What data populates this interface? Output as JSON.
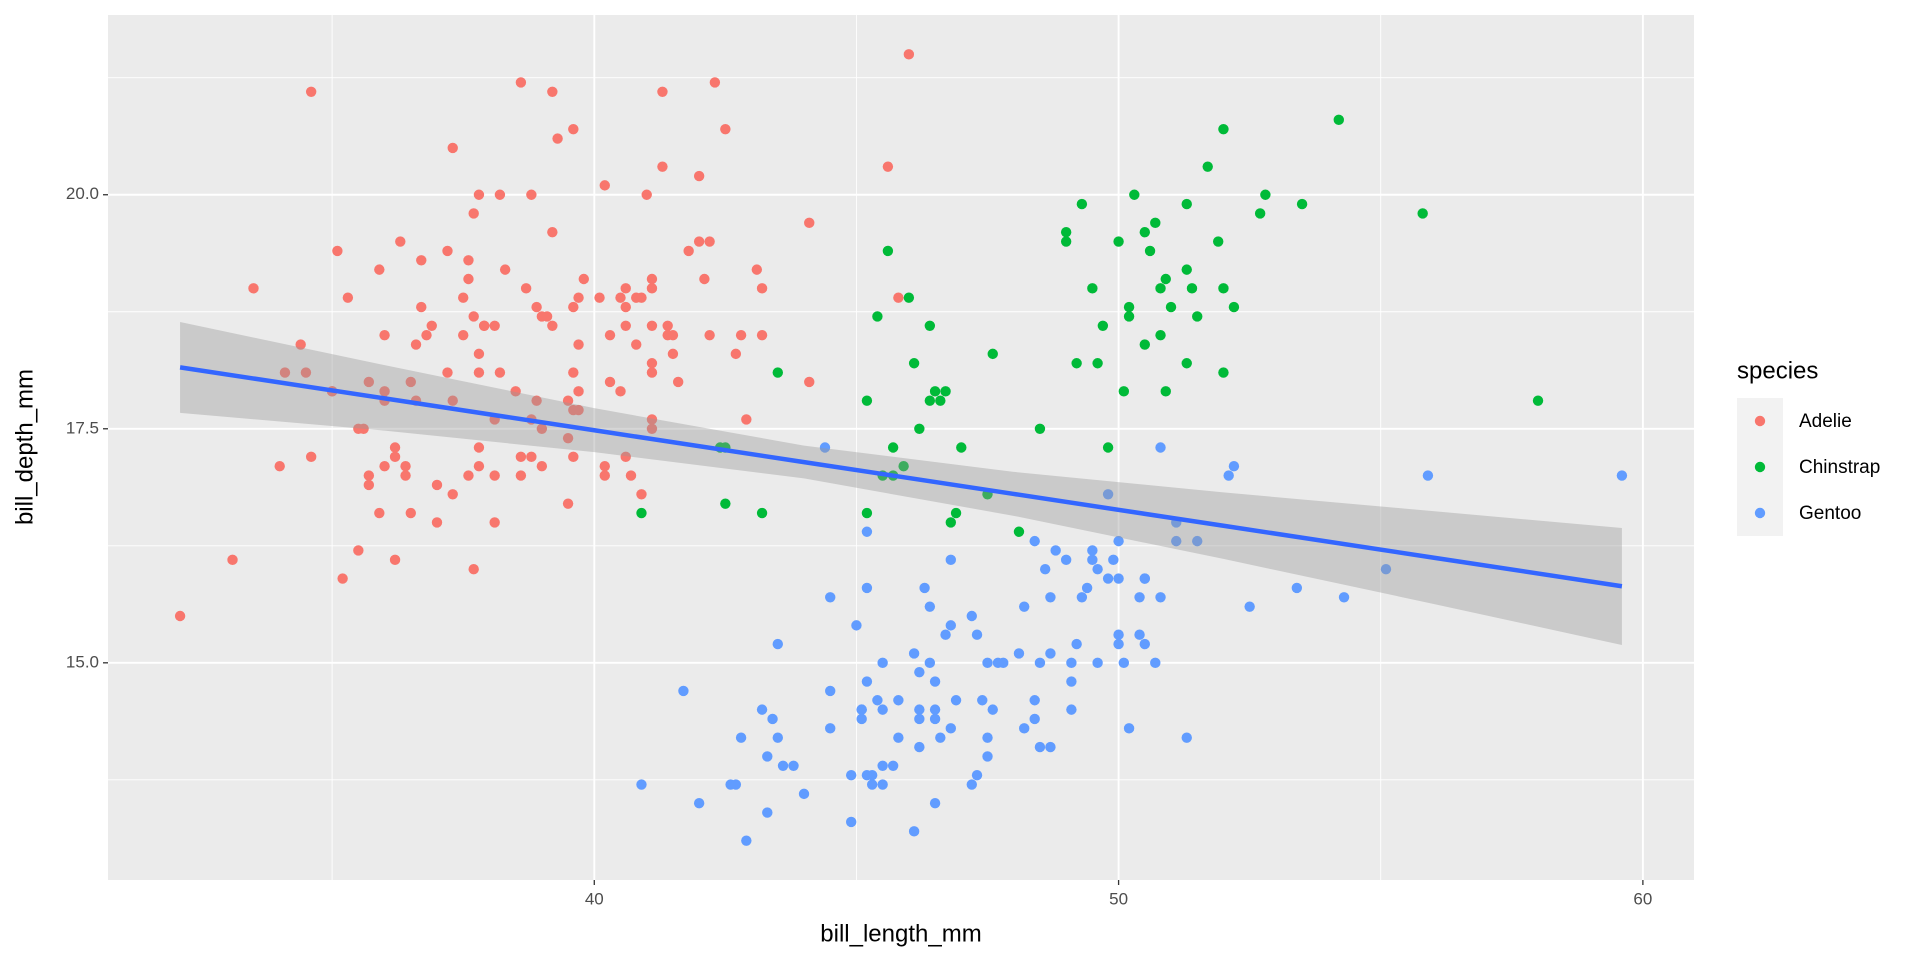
{
  "chart_data": {
    "type": "scatter",
    "x_label": "bill_length_mm",
    "y_label": "bill_depth_mm",
    "legend_title": "species",
    "legend_position": "right",
    "grid": true,
    "xlim": [
      30.725,
      60.975
    ],
    "ylim": [
      12.68,
      21.92
    ],
    "xticks": [
      40,
      50,
      60
    ],
    "yticks": [
      {
        "value": 15,
        "label": "15.0"
      },
      {
        "value": 17.5,
        "label": "17.5"
      },
      {
        "value": 20,
        "label": "20.0"
      }
    ],
    "series": [
      {
        "name": "Adelie",
        "color": "#F8766D",
        "x": [
          39.1,
          39.5,
          40.3,
          36.7,
          39.3,
          38.9,
          39.2,
          34.1,
          42.0,
          37.8,
          37.8,
          41.1,
          38.6,
          34.6,
          36.6,
          38.7,
          42.5,
          34.4,
          46.0,
          37.8,
          37.7,
          35.9,
          38.2,
          38.8,
          35.3,
          40.6,
          40.5,
          37.9,
          40.5,
          39.5,
          37.2,
          39.5,
          40.9,
          36.4,
          39.2,
          38.8,
          42.2,
          37.6,
          39.8,
          36.5,
          40.8,
          36.0,
          44.1,
          37.0,
          39.6,
          41.1,
          37.5,
          36.0,
          42.3,
          39.6,
          40.1,
          35.0,
          42.0,
          34.5,
          41.4,
          39.0,
          40.6,
          36.5,
          37.6,
          35.7,
          41.3,
          37.6,
          41.1,
          36.4,
          41.6,
          35.5,
          41.1,
          35.9,
          41.8,
          33.5,
          39.7,
          39.6,
          45.8,
          35.5,
          42.8,
          40.9,
          37.2,
          36.2,
          42.1,
          34.6,
          42.9,
          36.7,
          35.1,
          37.3,
          41.3,
          36.3,
          36.9,
          38.3,
          38.9,
          35.7,
          41.1,
          34.0,
          39.6,
          36.2,
          40.8,
          38.1,
          40.3,
          33.1,
          43.2,
          35.0,
          41.0,
          37.7,
          37.8,
          37.9,
          39.7,
          38.6,
          38.2,
          38.1,
          43.2,
          38.1,
          45.6,
          39.7,
          42.2,
          39.6,
          42.7,
          38.6,
          37.3,
          35.7,
          41.1,
          36.2,
          37.7,
          40.2,
          41.4,
          35.2,
          40.6,
          38.8,
          41.5,
          39.0,
          44.1,
          38.5,
          43.1,
          36.8,
          37.5,
          38.1,
          41.1,
          35.6,
          40.2,
          37.0,
          39.7,
          40.2,
          40.6,
          32.1,
          40.7,
          37.3,
          39.0,
          39.2,
          36.6,
          36.0,
          37.8,
          36.0,
          41.5
        ],
        "y": [
          18.7,
          17.4,
          18.0,
          19.3,
          20.6,
          17.8,
          19.6,
          18.1,
          20.2,
          17.1,
          17.3,
          17.6,
          21.2,
          21.1,
          17.8,
          19.0,
          20.7,
          18.4,
          21.5,
          18.3,
          18.7,
          19.2,
          18.1,
          17.2,
          18.9,
          18.6,
          17.9,
          18.6,
          18.9,
          16.7,
          18.1,
          17.8,
          18.9,
          17.0,
          21.1,
          20.0,
          18.5,
          19.3,
          19.1,
          18.0,
          18.4,
          18.5,
          19.7,
          16.9,
          18.8,
          19.0,
          18.9,
          17.9,
          21.2,
          17.7,
          18.9,
          17.9,
          19.5,
          18.1,
          18.6,
          17.5,
          18.8,
          16.6,
          19.1,
          16.9,
          21.1,
          17.0,
          18.2,
          17.1,
          18.0,
          16.2,
          19.1,
          16.6,
          19.4,
          19.0,
          18.4,
          17.2,
          18.9,
          17.5,
          18.5,
          16.8,
          19.4,
          16.1,
          19.1,
          17.2,
          17.6,
          18.8,
          19.4,
          17.8,
          20.3,
          19.5,
          18.6,
          19.2,
          18.8,
          18.0,
          18.1,
          17.1,
          18.1,
          17.3,
          18.9,
          18.6,
          18.5,
          16.1,
          18.5,
          17.9,
          20.0,
          16.0,
          20.0,
          18.6,
          18.9,
          17.2,
          20.0,
          17.0,
          19.0,
          16.5,
          20.3,
          17.7,
          19.5,
          20.7,
          18.3,
          17.0,
          20.5,
          17.0,
          18.6,
          17.2,
          19.8,
          17.0,
          18.5,
          15.9,
          19.0,
          17.6,
          18.3,
          17.1,
          18.0,
          17.9,
          19.2,
          18.5,
          18.5,
          17.6,
          17.5,
          17.5,
          20.1,
          16.5,
          17.9,
          17.1,
          17.2,
          15.5,
          17.0,
          16.8,
          18.7,
          18.6,
          18.4,
          17.8,
          18.1,
          17.1,
          18.5
        ]
      },
      {
        "name": "Chinstrap",
        "color": "#00BA38",
        "x": [
          46.5,
          50.0,
          51.3,
          45.4,
          52.7,
          45.2,
          46.1,
          51.3,
          46.0,
          51.3,
          46.6,
          51.7,
          47.0,
          52.0,
          45.9,
          50.5,
          50.3,
          58.0,
          46.4,
          49.2,
          42.4,
          48.5,
          43.2,
          50.6,
          46.7,
          52.0,
          50.5,
          49.5,
          46.4,
          52.8,
          40.9,
          54.2,
          42.5,
          51.0,
          49.7,
          47.5,
          47.6,
          52.0,
          46.9,
          53.5,
          49.0,
          46.2,
          50.9,
          45.5,
          50.9,
          50.8,
          50.1,
          49.0,
          51.5,
          49.8,
          48.1,
          51.4,
          45.7,
          50.7,
          42.5,
          52.2,
          45.2,
          49.3,
          50.2,
          45.6,
          51.9,
          46.8,
          45.7,
          55.8,
          43.5,
          49.6,
          50.8,
          50.2
        ],
        "y": [
          17.9,
          19.5,
          19.2,
          18.7,
          19.8,
          17.8,
          18.2,
          18.2,
          18.9,
          19.9,
          17.8,
          20.3,
          17.3,
          18.1,
          17.1,
          19.6,
          20.0,
          17.8,
          18.6,
          18.2,
          17.3,
          17.5,
          16.6,
          19.4,
          17.9,
          19.0,
          18.4,
          19.0,
          17.8,
          20.0,
          16.6,
          20.8,
          16.7,
          18.8,
          18.6,
          16.8,
          18.3,
          20.7,
          16.6,
          19.9,
          19.5,
          17.5,
          19.1,
          17.0,
          17.9,
          18.5,
          17.9,
          19.6,
          18.7,
          17.3,
          16.4,
          19.0,
          17.3,
          19.7,
          17.3,
          18.8,
          16.6,
          19.9,
          18.8,
          19.4,
          19.5,
          16.5,
          17.0,
          19.8,
          18.1,
          18.2,
          19.0,
          18.7
        ]
      },
      {
        "name": "Gentoo",
        "color": "#619CFF",
        "x": [
          46.1,
          50.0,
          48.7,
          50.0,
          47.6,
          46.5,
          45.4,
          46.7,
          43.3,
          46.8,
          40.9,
          49.0,
          45.5,
          48.4,
          45.8,
          49.3,
          42.0,
          49.2,
          46.2,
          48.7,
          50.2,
          45.1,
          46.5,
          46.3,
          42.9,
          46.1,
          44.5,
          47.8,
          48.2,
          50.0,
          47.3,
          42.8,
          45.1,
          59.6,
          49.1,
          48.4,
          42.6,
          44.4,
          44.0,
          48.7,
          42.7,
          49.6,
          45.3,
          49.6,
          50.5,
          43.6,
          45.5,
          50.5,
          44.9,
          45.2,
          46.6,
          48.5,
          45.1,
          50.1,
          46.5,
          45.0,
          43.8,
          45.5,
          43.2,
          50.4,
          45.3,
          46.2,
          45.7,
          54.3,
          45.8,
          49.8,
          46.2,
          49.5,
          43.5,
          50.7,
          47.7,
          46.4,
          48.2,
          46.5,
          46.4,
          48.6,
          47.5,
          51.1,
          45.2,
          45.2,
          49.1,
          52.5,
          47.4,
          50.0,
          44.9,
          50.8,
          43.4,
          51.3,
          47.5,
          52.1,
          47.5,
          52.2,
          45.5,
          49.5,
          44.5,
          50.8,
          49.4,
          46.9,
          48.4,
          51.1,
          48.5,
          55.9,
          47.2,
          49.1,
          47.3,
          46.8,
          41.7,
          53.4,
          43.3,
          48.1,
          50.5,
          49.8,
          43.5,
          51.5,
          46.2,
          55.1,
          44.5,
          48.8,
          47.2,
          46.8,
          50.4,
          45.2,
          49.9
        ],
        "y": [
          13.2,
          16.3,
          14.1,
          15.2,
          14.5,
          13.5,
          14.6,
          15.3,
          13.4,
          15.4,
          13.7,
          16.1,
          13.7,
          14.6,
          14.6,
          15.7,
          13.5,
          15.2,
          14.5,
          15.1,
          14.3,
          14.5,
          14.5,
          15.8,
          13.1,
          15.1,
          14.3,
          15.0,
          14.3,
          15.3,
          15.3,
          14.2,
          14.5,
          17.0,
          14.8,
          16.3,
          13.7,
          17.3,
          13.6,
          15.7,
          13.7,
          16.0,
          13.7,
          15.0,
          15.9,
          13.9,
          13.9,
          15.9,
          13.3,
          15.8,
          14.2,
          14.1,
          14.4,
          15.0,
          14.4,
          15.4,
          13.9,
          15.0,
          14.5,
          15.3,
          13.8,
          14.9,
          13.9,
          15.7,
          14.2,
          16.8,
          14.4,
          16.2,
          14.2,
          15.0,
          15.0,
          15.6,
          15.6,
          14.8,
          15.0,
          16.0,
          14.2,
          16.3,
          13.8,
          16.4,
          14.5,
          15.6,
          14.6,
          15.9,
          13.8,
          17.3,
          14.4,
          14.2,
          14.0,
          17.0,
          15.0,
          17.1,
          14.5,
          16.1,
          14.7,
          15.7,
          15.8,
          14.6,
          14.4,
          16.5,
          15.0,
          17.0,
          15.5,
          15.0,
          13.8,
          16.1,
          14.7,
          15.8,
          14.0,
          15.1,
          15.2,
          15.9,
          15.2,
          16.3,
          14.1,
          16.0,
          15.7,
          16.2,
          13.7,
          14.3,
          15.7,
          14.8,
          16.1
        ]
      }
    ],
    "smooth": {
      "color": "#3366FF",
      "x": [
        32.1,
        36,
        40,
        44,
        48,
        52,
        56,
        59.6
      ],
      "y": [
        18.156,
        17.825,
        17.484,
        17.144,
        16.804,
        16.464,
        16.124,
        15.818
      ],
      "ymin": [
        17.67,
        17.48,
        17.25,
        16.97,
        16.57,
        16.11,
        15.63,
        15.19
      ],
      "ymax": [
        18.64,
        18.18,
        17.72,
        17.32,
        17.04,
        16.82,
        16.62,
        16.44
      ]
    }
  }
}
